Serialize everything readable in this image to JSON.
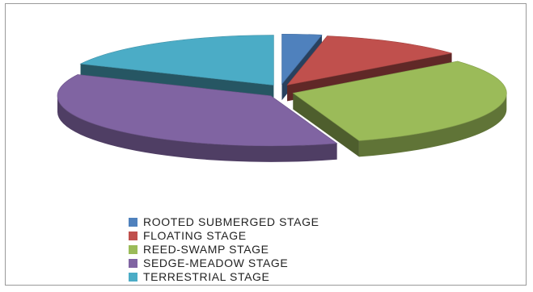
{
  "chart_data": {
    "type": "pie",
    "style": "3d-exploded",
    "title": "",
    "legend_position": "bottom",
    "series": [
      {
        "name": "ROOTED SUBMERGED STAGE",
        "value": 3,
        "color": "#4f81bd"
      },
      {
        "name": "FLOATING STAGE",
        "value": 11,
        "color": "#c0504d"
      },
      {
        "name": "REED-SWAMP STAGE",
        "value": 31,
        "color": "#9bbb59"
      },
      {
        "name": "SEDGE-MEADOW STAGE",
        "value": 37,
        "color": "#8064a2"
      },
      {
        "name": "TERRESTRIAL STAGE",
        "value": 18,
        "color": "#4bacc6"
      }
    ]
  }
}
